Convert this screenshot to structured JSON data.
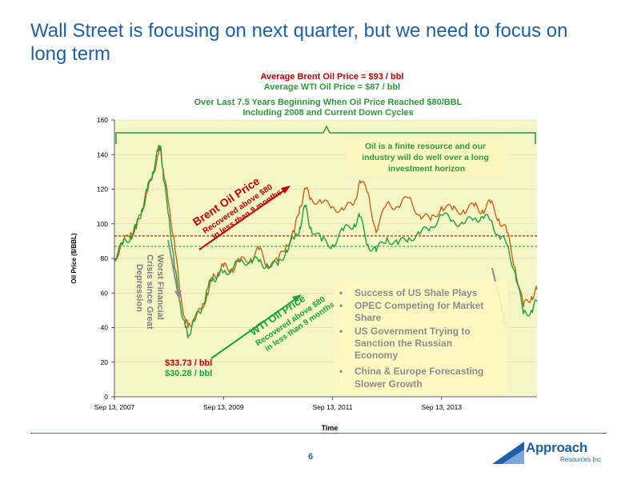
{
  "slide": {
    "title": "Wall Street is focusing on next quarter, but we need to focus on long term",
    "page_number": "6"
  },
  "logo": {
    "name": "Approach",
    "sub": "Resources Inc"
  },
  "averages": {
    "brent": "Average Brent Oil Price = $93 / bbl",
    "wti": "Average WTI Oil Price = $87 / bbl"
  },
  "subtitle": {
    "line1": "Over Last 7.5 Years Beginning When Oil Price Reached $80/BBL",
    "line2": "Including 2008 and Current Down Cycles"
  },
  "annotations": {
    "finite": [
      "Oil is a finite resource and our",
      "industry will do well over a long",
      "investment horizon"
    ],
    "brent_label": "Brent Oil Price",
    "brent_recover": [
      "Recovered above $80",
      "in less than 9 months"
    ],
    "wti_label": "WTI Oil Price",
    "wti_recover": [
      "Recovered above $80",
      "in less than 9 months"
    ],
    "crisis": [
      "Worst Financial",
      "Crisis since Great",
      "Depression"
    ],
    "brent_low": "$33.73 / bbl",
    "wti_low": "$30.28 / bbl",
    "bullets": [
      [
        "Success of US Shale Plays"
      ],
      [
        "OPEC Competing for Market",
        "Share"
      ],
      [
        "US Government Trying to",
        "Sanction the Russian",
        "Economy"
      ],
      [
        "China & Europe Forecasting",
        "Slower Growth"
      ]
    ]
  },
  "colors": {
    "title": "#1f5fa8",
    "brent": "#c8621b",
    "wti": "#1aa33a",
    "red": "#c00000",
    "green_text": "#2e9a3a",
    "plot_bg": "#f6f5c6",
    "bullet_bg": "#fbf8bf",
    "bullet_text": "#8c8c8c",
    "crisis_text": "#7f7f7f"
  },
  "chart_data": {
    "type": "line",
    "xlabel": "Time",
    "ylabel": "Oil Price ($/BBL)",
    "ylim": [
      0,
      160
    ],
    "yticks": [
      0,
      20,
      40,
      60,
      80,
      100,
      120,
      140,
      160
    ],
    "xticks": [
      "Sep 13, 2007",
      "Sep 13, 2009",
      "Sep 13, 2011",
      "Sep 13, 2013"
    ],
    "xlim": [
      2007.7,
      2015.45
    ],
    "xtick_values": [
      2007.7,
      2009.7,
      2011.7,
      2013.7
    ],
    "reference_lines": [
      {
        "name": "Average Brent",
        "value": 93,
        "style": "dashed",
        "color": "#c00000"
      },
      {
        "name": "Average WTI",
        "value": 87,
        "style": "dashed",
        "color": "#1aa33a"
      }
    ],
    "series": [
      {
        "name": "Brent",
        "x": [
          2007.7,
          2007.85,
          2008.0,
          2008.1,
          2008.2,
          2008.3,
          2008.4,
          2008.5,
          2008.55,
          2008.6,
          2008.7,
          2008.8,
          2008.9,
          2009.0,
          2009.05,
          2009.15,
          2009.3,
          2009.4,
          2009.5,
          2009.6,
          2009.7,
          2009.85,
          2010.0,
          2010.2,
          2010.35,
          2010.5,
          2010.7,
          2010.85,
          2011.0,
          2011.1,
          2011.2,
          2011.3,
          2011.5,
          2011.7,
          2011.9,
          2012.1,
          2012.2,
          2012.35,
          2012.5,
          2012.7,
          2012.9,
          2013.1,
          2013.3,
          2013.5,
          2013.7,
          2013.9,
          2014.1,
          2014.3,
          2014.45,
          2014.6,
          2014.75,
          2014.9,
          2015.05,
          2015.2,
          2015.35,
          2015.45
        ],
        "values": [
          80,
          88,
          95,
          97,
          108,
          118,
          128,
          140,
          144,
          130,
          110,
          90,
          60,
          45,
          40,
          45,
          50,
          60,
          68,
          72,
          75,
          74,
          78,
          80,
          85,
          77,
          78,
          88,
          95,
          110,
          120,
          115,
          112,
          110,
          108,
          112,
          125,
          118,
          95,
          112,
          110,
          115,
          105,
          102,
          110,
          108,
          108,
          110,
          108,
          112,
          103,
          95,
          75,
          52,
          58,
          62
        ]
      },
      {
        "name": "WTI",
        "x": [
          2007.7,
          2007.85,
          2008.0,
          2008.1,
          2008.2,
          2008.3,
          2008.4,
          2008.5,
          2008.55,
          2008.6,
          2008.7,
          2008.8,
          2008.9,
          2009.0,
          2009.05,
          2009.15,
          2009.3,
          2009.4,
          2009.5,
          2009.6,
          2009.7,
          2009.85,
          2010.0,
          2010.2,
          2010.35,
          2010.5,
          2010.7,
          2010.85,
          2011.0,
          2011.1,
          2011.2,
          2011.3,
          2011.5,
          2011.7,
          2011.9,
          2012.1,
          2012.2,
          2012.35,
          2012.5,
          2012.7,
          2012.9,
          2013.1,
          2013.3,
          2013.5,
          2013.7,
          2013.9,
          2014.1,
          2014.3,
          2014.45,
          2014.6,
          2014.75,
          2014.9,
          2015.05,
          2015.2,
          2015.35,
          2015.45
        ],
        "values": [
          80,
          88,
          93,
          98,
          108,
          119,
          130,
          142,
          145,
          125,
          105,
          75,
          55,
          40,
          35,
          44,
          50,
          62,
          68,
          70,
          72,
          74,
          78,
          79,
          78,
          76,
          76,
          85,
          91,
          98,
          110,
          98,
          90,
          88,
          96,
          100,
          104,
          88,
          84,
          92,
          88,
          92,
          94,
          98,
          105,
          102,
          100,
          103,
          104,
          102,
          93,
          88,
          72,
          48,
          50,
          55
        ]
      }
    ]
  }
}
